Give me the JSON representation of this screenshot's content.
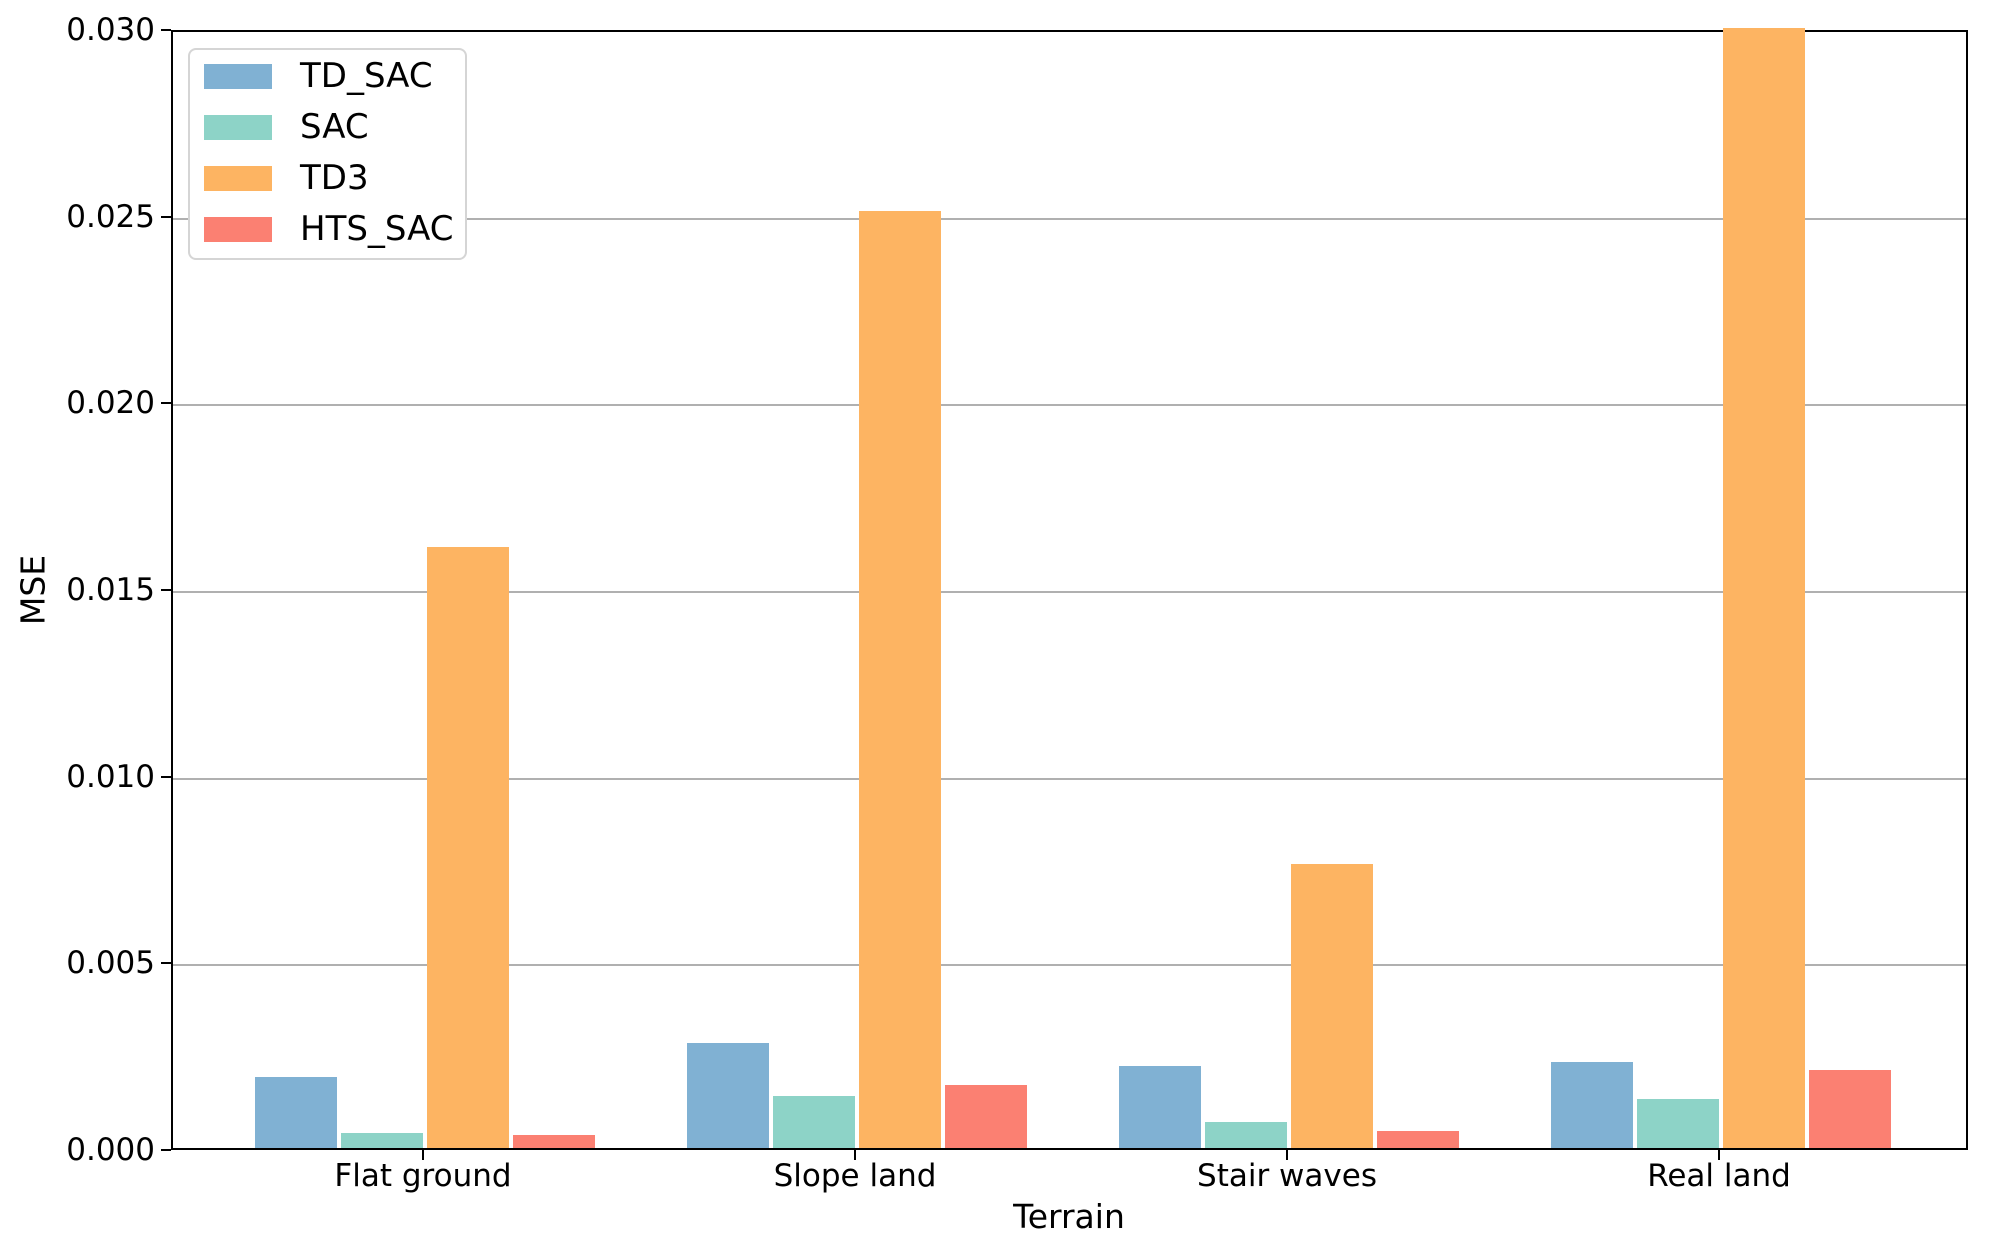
{
  "chart_data": {
    "type": "bar",
    "title": "",
    "xlabel": "Terrain",
    "ylabel": "MSE",
    "categories": [
      "Flat ground",
      "Slope land",
      "Stair waves",
      "Real land"
    ],
    "series": [
      {
        "name": "TD_SAC",
        "color": "#80b1d3",
        "values": [
          0.0019,
          0.0028,
          0.0022,
          0.0023
        ]
      },
      {
        "name": "SAC",
        "color": "#8dd3c7",
        "values": [
          0.0004,
          0.0014,
          0.0007,
          0.0013
        ]
      },
      {
        "name": "TD3",
        "color": "#fdb462",
        "values": [
          0.0161,
          0.0251,
          0.0076,
          0.03
        ]
      },
      {
        "name": "HTS_SAC",
        "color": "#fb8072",
        "values": [
          0.00035,
          0.0017,
          0.00045,
          0.0021
        ]
      }
    ],
    "ylim": [
      0.0,
      0.03
    ],
    "yticks": [
      0.0,
      0.005,
      0.01,
      0.015,
      0.02,
      0.025,
      0.03
    ],
    "ytick_labels": [
      "0.000",
      "0.005",
      "0.010",
      "0.015",
      "0.020",
      "0.025",
      "0.030"
    ],
    "grid": "horizontal",
    "grid_color": "#b0b0b0",
    "legend_position": "upper-left"
  }
}
